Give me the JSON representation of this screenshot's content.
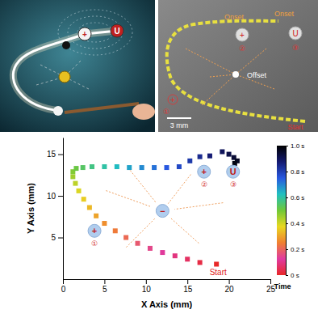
{
  "chart_data": {
    "type": "scatter",
    "marker": "square",
    "x_label": "X Axis (mm)",
    "y_label": "Y Axis (mm)",
    "xlim": [
      0,
      25
    ],
    "xticks": [
      0,
      5,
      10,
      15,
      20,
      25
    ],
    "ylim": [
      0,
      17
    ],
    "yticks": [
      5,
      10,
      15
    ],
    "grid": false,
    "x": [
      18.5,
      16.5,
      15,
      13.5,
      12,
      10.5,
      9,
      7.6,
      6.3,
      5,
      4,
      3.2,
      2.5,
      1.9,
      1.5,
      1.2,
      1.2,
      1.6,
      2.4,
      3.5,
      5,
      6.5,
      8,
      9.5,
      11,
      12.5,
      14,
      15.3,
      16.5,
      17.7,
      19.2,
      20,
      20.6,
      21,
      20.7
    ],
    "values": [
      1.8,
      2.0,
      2.4,
      2.8,
      3.2,
      3.7,
      4.3,
      5.0,
      5.8,
      6.7,
      7.6,
      8.6,
      9.6,
      10.6,
      11.5,
      12.3,
      12.9,
      13.3,
      13.4,
      13.5,
      13.5,
      13.5,
      13.4,
      13.4,
      13.4,
      13.4,
      13.5,
      14.2,
      14.7,
      14.8,
      15.3,
      15.0,
      14.6,
      14.2,
      13.9
    ],
    "time": [
      0.0,
      0.03,
      0.06,
      0.09,
      0.12,
      0.15,
      0.18,
      0.21,
      0.24,
      0.27,
      0.3,
      0.33,
      0.36,
      0.39,
      0.42,
      0.45,
      0.48,
      0.51,
      0.54,
      0.57,
      0.6,
      0.63,
      0.66,
      0.69,
      0.72,
      0.75,
      0.78,
      0.81,
      0.84,
      0.87,
      0.9,
      0.92,
      0.94,
      0.96,
      0.98
    ],
    "colorbar": {
      "title": "Time",
      "range": [
        0,
        1
      ],
      "ticks": [
        {
          "value": 0,
          "label": "0 s"
        },
        {
          "value": 0.2,
          "label": "0.2 s"
        },
        {
          "value": 0.4,
          "label": "0.4 s"
        },
        {
          "value": 0.6,
          "label": "0.6 s"
        },
        {
          "value": 0.8,
          "label": "0.8 s"
        },
        {
          "value": 1,
          "label": "1.0 s"
        }
      ]
    },
    "annotations": [
      {
        "text": "+",
        "x": 3.8,
        "y": 5.8,
        "label": "①"
      },
      {
        "text": "−",
        "x": 12,
        "y": 8.2
      },
      {
        "text": "+",
        "x": 17,
        "y": 12.9,
        "label": "②"
      },
      {
        "text": "U",
        "x": 20.5,
        "y": 12.9,
        "label": "③"
      },
      {
        "text": "Start",
        "x": 18.7,
        "y": 0.8
      }
    ]
  },
  "illustration_labels": [
    "+",
    "U"
  ],
  "photo_labels": [
    "Onset",
    "Onset",
    "+",
    "U",
    "Offset",
    "Start",
    "3 mm",
    "①",
    "②",
    "③",
    "+"
  ]
}
